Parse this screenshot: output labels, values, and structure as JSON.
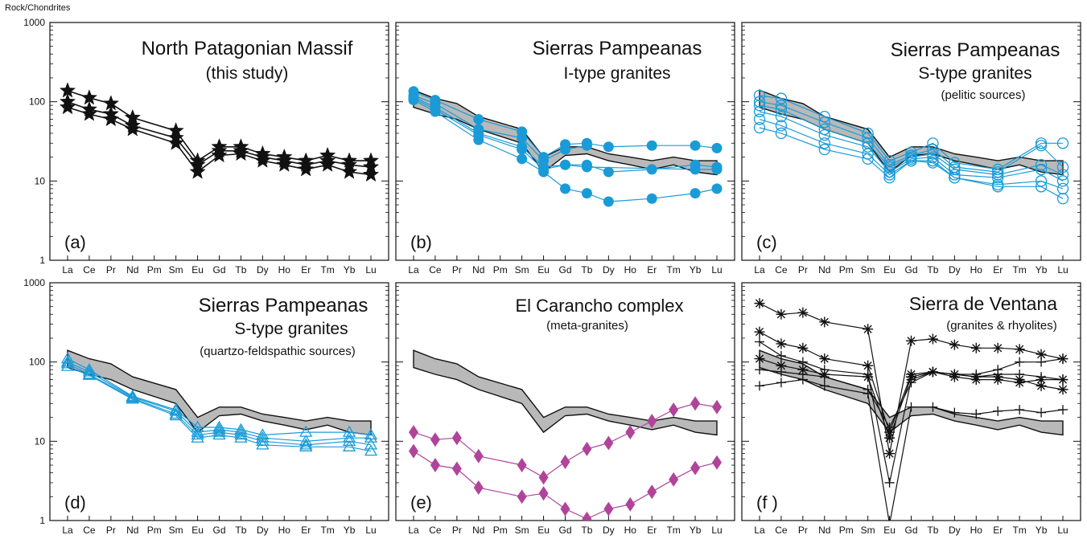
{
  "y_axis_label": "Rock/Chondrites",
  "elements": [
    "La",
    "Ce",
    "Pr",
    "Nd",
    "Pm",
    "Sm",
    "Eu",
    "Gd",
    "Tb",
    "Dy",
    "Ho",
    "Er",
    "Tm",
    "Yb",
    "Lu"
  ],
  "y_ticks": [
    "1",
    "10",
    "100",
    "1000"
  ],
  "colors": {
    "black": "#111111",
    "blue": "#1a9bd7",
    "magenta": "#b0449a",
    "band": "#b9b9b9"
  },
  "band": {
    "upper": [
      140,
      110,
      95,
      65,
      null,
      45,
      20,
      27,
      27,
      22,
      20,
      18,
      20,
      18,
      18
    ],
    "lower": [
      85,
      70,
      60,
      45,
      null,
      30,
      13,
      21,
      22,
      18,
      16,
      14,
      16,
      13,
      12
    ]
  },
  "chart_data": [
    {
      "type": "line",
      "panel": "a",
      "title": "North Patagonian Massif",
      "subtitle": "(this study)",
      "scale": "log",
      "ylim": [
        1,
        1000
      ],
      "show_band": false,
      "series": [
        {
          "marker": "star-filled",
          "color": "#111111",
          "values": [
            138,
            112,
            95,
            63,
            null,
            43,
            18,
            27,
            27,
            22,
            20,
            18,
            21,
            18,
            18
          ]
        },
        {
          "marker": "star-filled",
          "color": "#111111",
          "values": [
            100,
            80,
            70,
            50,
            null,
            35,
            16,
            24,
            24,
            20,
            18,
            16,
            18,
            16,
            15
          ]
        },
        {
          "marker": "star-filled",
          "color": "#111111",
          "values": [
            85,
            70,
            60,
            45,
            null,
            30,
            13,
            21,
            22,
            18,
            16,
            14,
            16,
            13,
            12
          ]
        }
      ]
    },
    {
      "type": "line",
      "panel": "b",
      "title": "Sierras Pampeanas",
      "subtitle": "I-type granites",
      "scale": "log",
      "ylim": [
        1,
        1000
      ],
      "show_band": true,
      "series": [
        {
          "marker": "circle-filled",
          "color": "#1a9bd7",
          "values": [
            135,
            105,
            null,
            60,
            null,
            42,
            20,
            29,
            30,
            27,
            null,
            28,
            null,
            28,
            26
          ]
        },
        {
          "marker": "circle-filled",
          "color": "#1a9bd7",
          "values": [
            120,
            95,
            null,
            45,
            null,
            35,
            18,
            25,
            28,
            null,
            null,
            null,
            null,
            null,
            null
          ]
        },
        {
          "marker": "circle-filled",
          "color": "#1a9bd7",
          "values": [
            115,
            85,
            null,
            40,
            null,
            27,
            15,
            16,
            16,
            13,
            null,
            14,
            null,
            16,
            15
          ]
        },
        {
          "marker": "circle-filled",
          "color": "#1a9bd7",
          "values": [
            110,
            80,
            null,
            38,
            null,
            25,
            14,
            16,
            15,
            null,
            null,
            null,
            null,
            14,
            14
          ]
        },
        {
          "marker": "circle-filled",
          "color": "#1a9bd7",
          "values": [
            105,
            75,
            null,
            33,
            null,
            19,
            13,
            8,
            7,
            5.5,
            null,
            6,
            null,
            7,
            8
          ]
        }
      ]
    },
    {
      "type": "line",
      "panel": "c",
      "title": "Sierras Pampeanas",
      "subtitle": "S-type granites",
      "note": "(pelitic sources)",
      "scale": "log",
      "ylim": [
        1,
        1000
      ],
      "show_band": true,
      "series": [
        {
          "marker": "circle-open",
          "color": "#1a9bd7",
          "values": [
            120,
            110,
            null,
            65,
            null,
            40,
            18,
            23,
            30,
            17,
            null,
            14,
            null,
            30,
            30
          ]
        },
        {
          "marker": "circle-open",
          "color": "#1a9bd7",
          "values": [
            100,
            90,
            null,
            55,
            null,
            35,
            16,
            21,
            25,
            15,
            null,
            13,
            null,
            28,
            15
          ]
        },
        {
          "marker": "circle-open",
          "color": "#1a9bd7",
          "values": [
            90,
            80,
            null,
            45,
            null,
            30,
            15,
            20,
            22,
            14,
            null,
            12,
            null,
            16,
            12
          ]
        },
        {
          "marker": "circle-open",
          "color": "#1a9bd7",
          "values": [
            75,
            65,
            null,
            38,
            null,
            27,
            13,
            19,
            20,
            12,
            null,
            11,
            null,
            14,
            10
          ]
        },
        {
          "marker": "circle-open",
          "color": "#1a9bd7",
          "values": [
            60,
            50,
            null,
            30,
            null,
            22,
            12,
            18,
            18,
            11,
            null,
            9,
            null,
            10,
            8
          ]
        },
        {
          "marker": "circle-open",
          "color": "#1a9bd7",
          "values": [
            47,
            40,
            null,
            25,
            null,
            19,
            11,
            18,
            17,
            11,
            null,
            8.5,
            null,
            8.5,
            6
          ]
        }
      ]
    },
    {
      "type": "line",
      "panel": "d",
      "title": "Sierras Pampeanas",
      "subtitle": "S-type granites",
      "note": "(quartzo-feldspathic sources)",
      "scale": "log",
      "ylim": [
        1,
        1000
      ],
      "show_band": true,
      "series": [
        {
          "marker": "triangle-open",
          "color": "#1a9bd7",
          "values": [
            110,
            80,
            null,
            37,
            null,
            25,
            15,
            15,
            14,
            12,
            null,
            13,
            null,
            13,
            12
          ]
        },
        {
          "marker": "triangle-open",
          "color": "#1a9bd7",
          "values": [
            100,
            75,
            null,
            36,
            null,
            24,
            13,
            14,
            13,
            11,
            null,
            10,
            null,
            11,
            11
          ]
        },
        {
          "marker": "triangle-open",
          "color": "#1a9bd7",
          "values": [
            95,
            70,
            null,
            35,
            null,
            22,
            12,
            13,
            12,
            10,
            null,
            9,
            null,
            10,
            9
          ]
        },
        {
          "marker": "triangle-open",
          "color": "#1a9bd7",
          "values": [
            88,
            68,
            null,
            34,
            null,
            21,
            11,
            12,
            11,
            9,
            null,
            8.5,
            null,
            8.5,
            7.5
          ]
        }
      ]
    },
    {
      "type": "line",
      "panel": "e",
      "title": "El Carancho complex",
      "subtitle": "(meta-granites)",
      "scale": "log",
      "ylim": [
        1,
        1000
      ],
      "show_band": true,
      "series": [
        {
          "marker": "diamond-filled",
          "color": "#b0449a",
          "values": [
            13,
            10.5,
            11,
            6.5,
            null,
            5,
            3.5,
            5.5,
            8,
            9.5,
            13,
            18,
            25,
            30,
            27
          ]
        },
        {
          "marker": "diamond-filled",
          "color": "#b0449a",
          "values": [
            7.5,
            5,
            4.5,
            2.6,
            null,
            2,
            2.2,
            1.4,
            1.05,
            1.4,
            1.6,
            2.3,
            3.3,
            4.6,
            5.4
          ]
        }
      ]
    },
    {
      "type": "line",
      "panel": "f",
      "title": "Sierra de  Ventana",
      "subtitle": "(granites & rhyolites)",
      "scale": "log",
      "ylim": [
        1,
        1000
      ],
      "show_band": true,
      "series": [
        {
          "marker": "asterisk",
          "color": "#111111",
          "values": [
            550,
            400,
            420,
            320,
            null,
            260,
            7,
            185,
            195,
            165,
            150,
            150,
            145,
            125,
            110
          ]
        },
        {
          "marker": "asterisk",
          "color": "#111111",
          "values": [
            240,
            170,
            150,
            110,
            null,
            90,
            13,
            70,
            75,
            70,
            65,
            65,
            60,
            50,
            45
          ]
        },
        {
          "marker": "asterisk",
          "color": "#111111",
          "values": [
            110,
            90,
            80,
            70,
            null,
            65,
            11,
            65,
            75,
            65,
            60,
            60,
            55,
            60,
            60
          ]
        },
        {
          "marker": "plus",
          "color": "#111111",
          "values": [
            180,
            120,
            100,
            80,
            null,
            70,
            3,
            60,
            75,
            70,
            70,
            80,
            100,
            100,
            110
          ]
        },
        {
          "marker": "plus",
          "color": "#111111",
          "values": [
            80,
            75,
            70,
            65,
            null,
            45,
            15,
            55,
            75,
            70,
            65,
            70,
            70,
            65,
            60
          ]
        },
        {
          "marker": "plus",
          "color": "#111111",
          "values": [
            50,
            55,
            60,
            50,
            null,
            40,
            0.9,
            27,
            27,
            23,
            22,
            24,
            25,
            23,
            25
          ]
        }
      ]
    }
  ]
}
